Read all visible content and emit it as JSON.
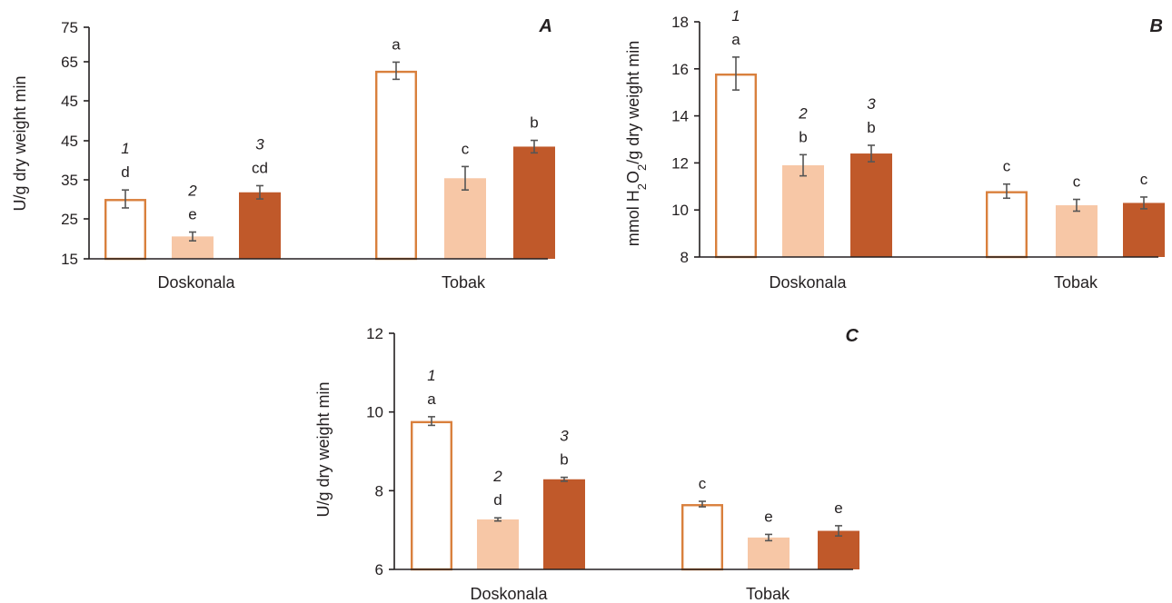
{
  "colors": {
    "treatment_1_fill": "#ffffff",
    "treatment_1_stroke": "#d9803d",
    "treatment_2_fill": "#f7c7a6",
    "treatment_3_fill": "#c0592a"
  },
  "chart_data": [
    {
      "type": "bar",
      "panel": "A",
      "ylabel": "U/g dry weight min",
      "yticks": [
        "15",
        "25",
        "35",
        "45",
        "45",
        "65",
        "75"
      ],
      "categories": [
        "Doskonala",
        "Tobak"
      ],
      "series": [
        {
          "name": "1",
          "values": [
            30.1,
            62.7
          ],
          "errors": [
            2.3,
            2.2
          ]
        },
        {
          "name": "2",
          "values": [
            20.6,
            35.4
          ],
          "errors": [
            1.1,
            3.0
          ]
        },
        {
          "name": "3",
          "values": [
            31.8,
            43.5
          ],
          "errors": [
            1.7,
            1.6
          ]
        }
      ],
      "significance": [
        [
          "d",
          "a"
        ],
        [
          "e",
          "c"
        ],
        [
          "cd",
          "b"
        ]
      ],
      "series_number_labels": [
        "1",
        "2",
        "3"
      ]
    },
    {
      "type": "bar",
      "panel": "B",
      "ylabel_parts": [
        "mmol H",
        "2",
        "O",
        "2",
        "/g dry weight min"
      ],
      "ylim": [
        8,
        18
      ],
      "yticks": [
        "8",
        "10",
        "12",
        "14",
        "16",
        "18"
      ],
      "categories": [
        "Doskonala",
        "Tobak"
      ],
      "series": [
        {
          "name": "1",
          "values": [
            15.8,
            10.8
          ],
          "errors": [
            0.7,
            0.3
          ]
        },
        {
          "name": "2",
          "values": [
            11.9,
            10.2
          ],
          "errors": [
            0.45,
            0.25
          ]
        },
        {
          "name": "3",
          "values": [
            12.4,
            10.3
          ],
          "errors": [
            0.35,
            0.25
          ]
        }
      ],
      "significance": [
        [
          "a",
          "c"
        ],
        [
          "b",
          "c"
        ],
        [
          "b",
          "c"
        ]
      ],
      "series_number_labels": [
        "1",
        "2",
        "3"
      ]
    },
    {
      "type": "bar",
      "panel": "C",
      "ylabel": "U/g dry weight min",
      "ylim": [
        6,
        12
      ],
      "yticks": [
        "6",
        "8",
        "10",
        "12"
      ],
      "categories": [
        "Doskonala",
        "Tobak"
      ],
      "series": [
        {
          "name": "1",
          "values": [
            9.77,
            7.66
          ],
          "errors": [
            0.11,
            0.07
          ]
        },
        {
          "name": "2",
          "values": [
            7.27,
            6.81
          ],
          "errors": [
            0.04,
            0.08
          ]
        },
        {
          "name": "3",
          "values": [
            8.29,
            6.98
          ],
          "errors": [
            0.05,
            0.13
          ]
        }
      ],
      "significance": [
        [
          "a",
          "c"
        ],
        [
          "d",
          "e"
        ],
        [
          "b",
          "e"
        ]
      ],
      "series_number_labels": [
        "1",
        "2",
        "3"
      ]
    }
  ]
}
